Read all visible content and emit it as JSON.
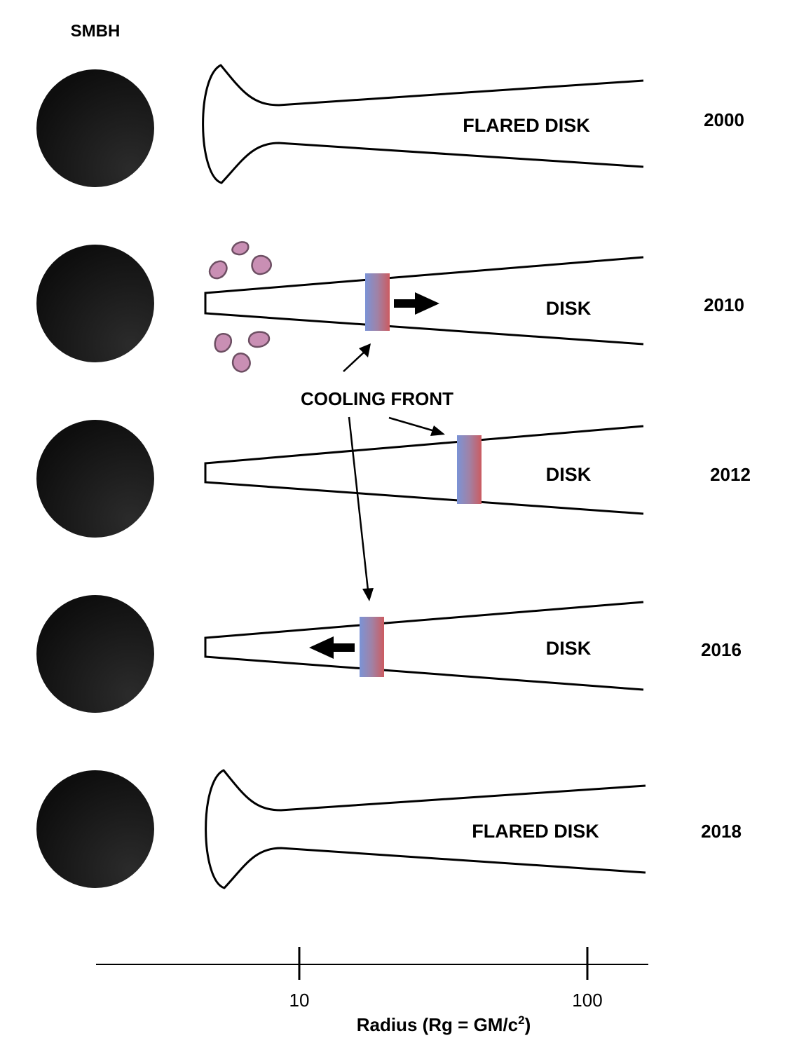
{
  "header": {
    "smbh_label": "SMBH"
  },
  "rows": [
    {
      "year": "2000",
      "disk_label": "FLARED DISK"
    },
    {
      "year": "2010",
      "disk_label": "DISK"
    },
    {
      "year": "2012",
      "disk_label": "DISK"
    },
    {
      "year": "2016",
      "disk_label": "DISK"
    },
    {
      "year": "2018",
      "disk_label": "FLARED DISK"
    }
  ],
  "annotation": {
    "cooling_front": "COOLING FRONT"
  },
  "axis": {
    "label_main": "Radius (Rg = GM/c",
    "label_sup": "2",
    "label_end": ")",
    "ticks": [
      "10",
      "100"
    ]
  },
  "colors": {
    "black_hole": "#121212",
    "front_cool": "#7b93d6",
    "front_hot": "#cc5b60",
    "clump_fill": "#c98fb4",
    "clump_stroke": "#6d4f63"
  }
}
